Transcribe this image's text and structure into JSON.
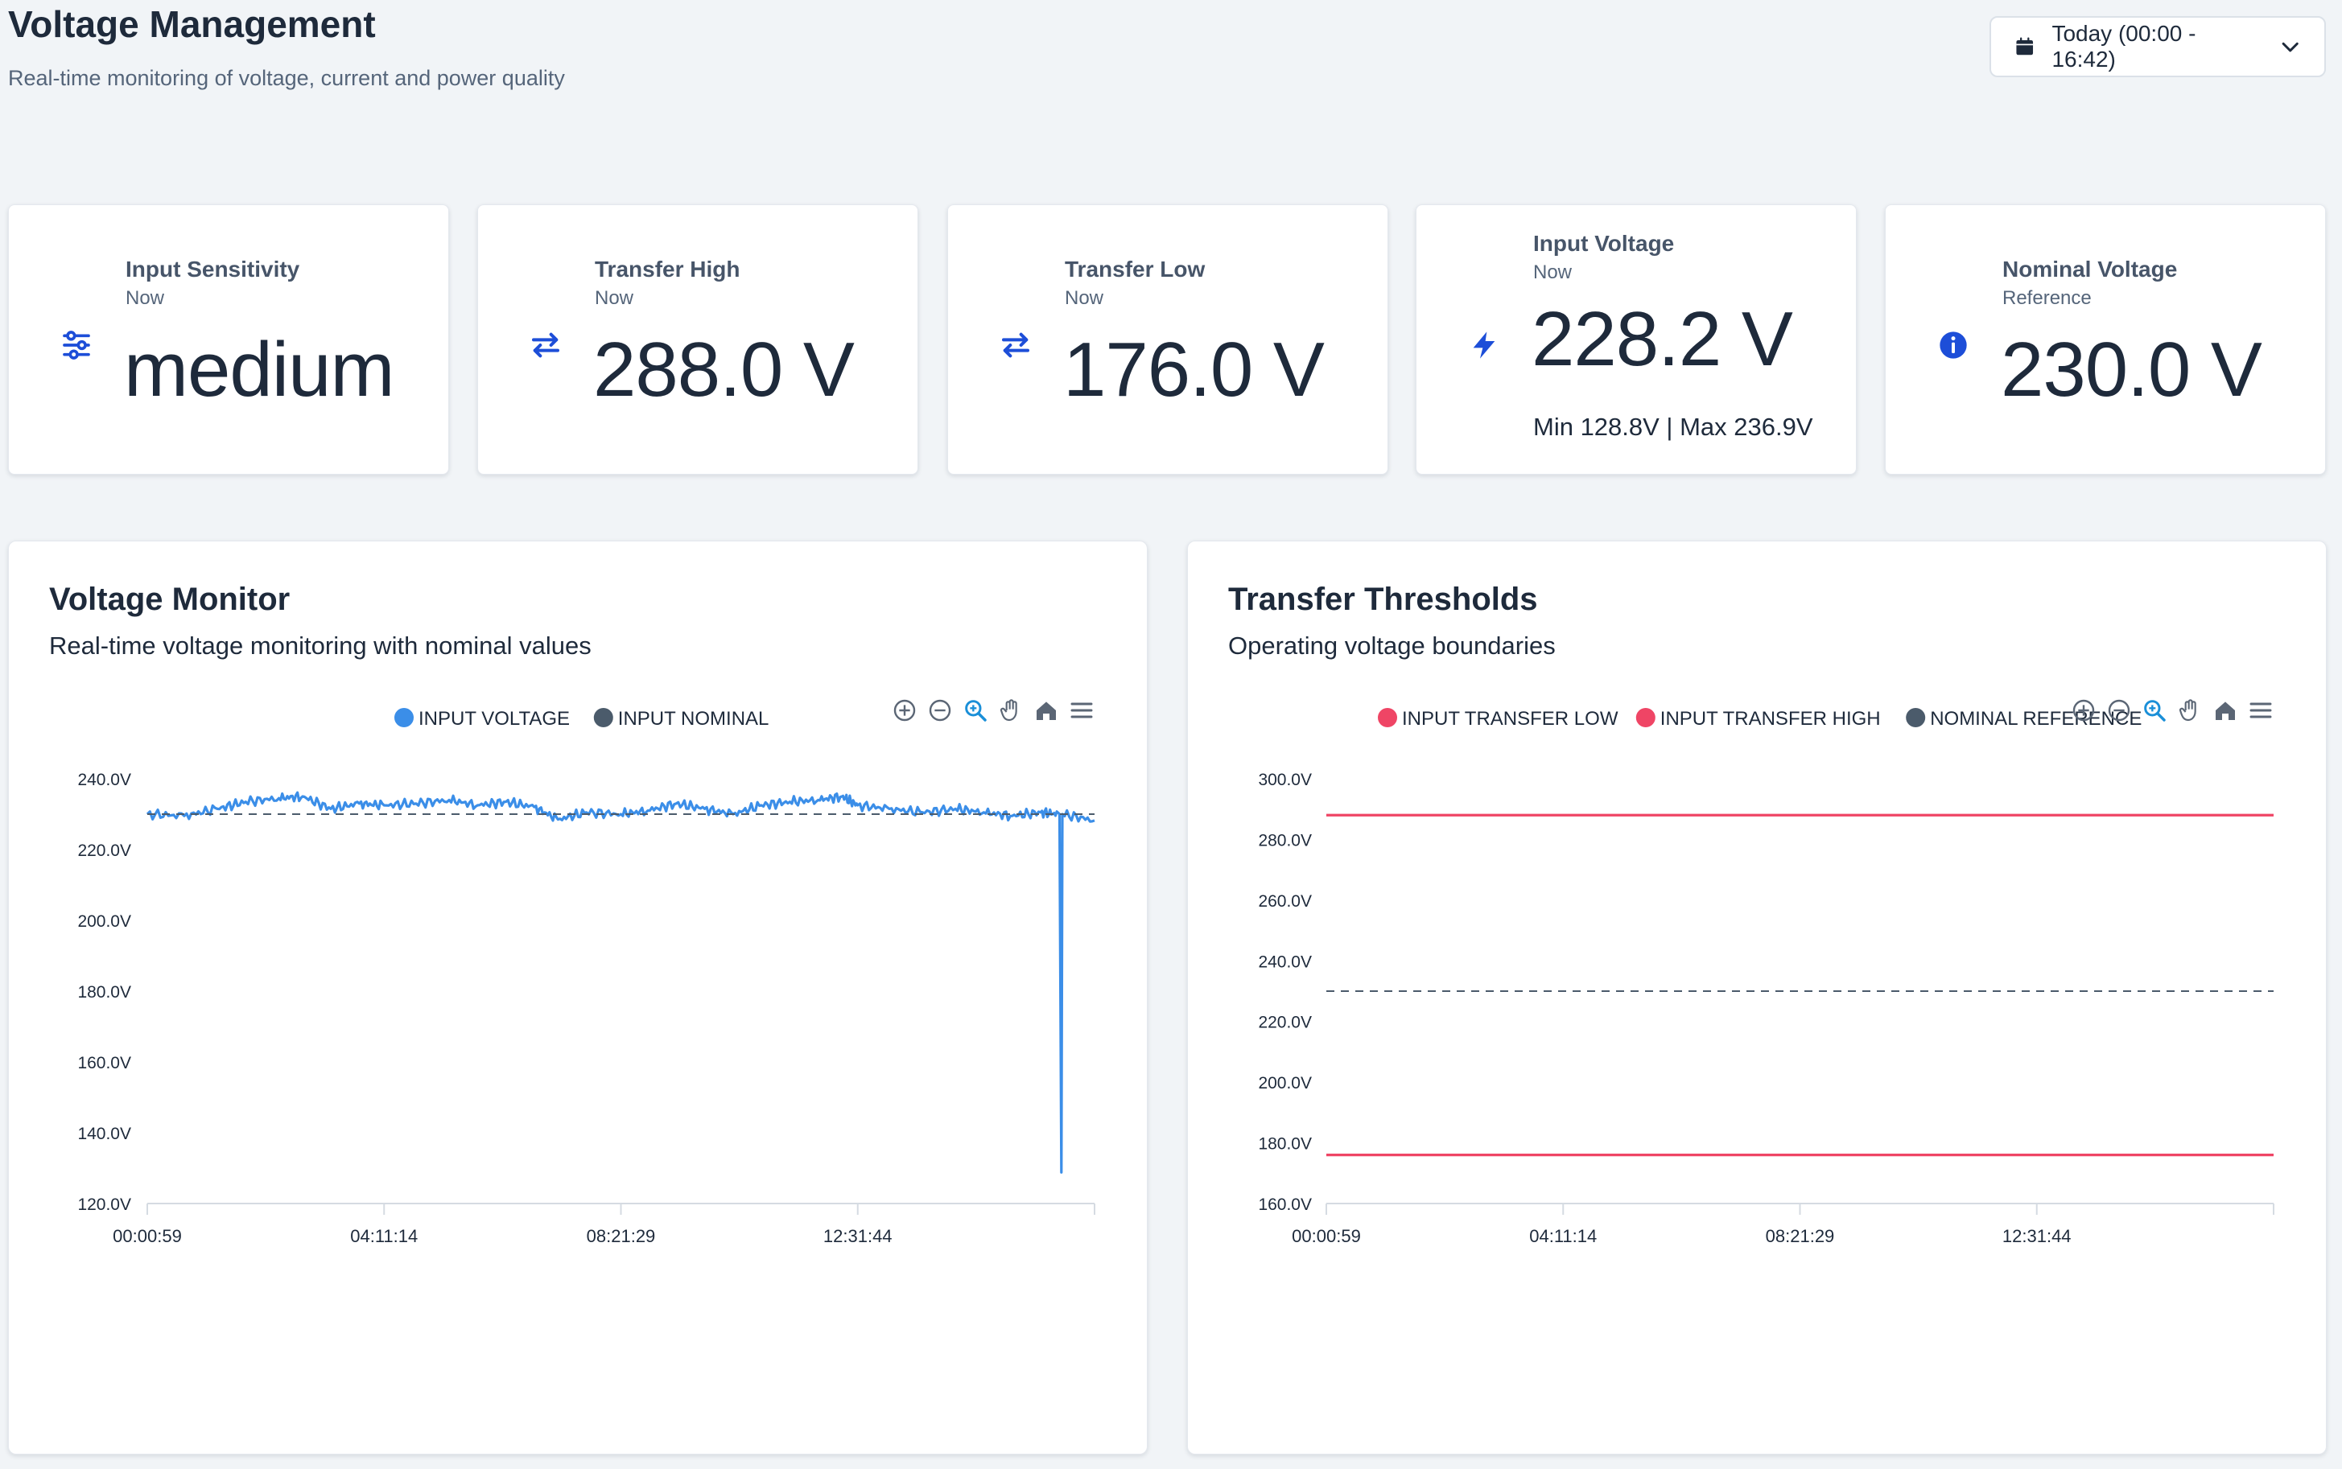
{
  "header": {
    "title": "Voltage Management",
    "subtitle": "Real-time monitoring of voltage, current and power quality"
  },
  "range_picker": {
    "label": "Today (00:00 - 16:42)",
    "icon": "calendar-icon"
  },
  "cards": [
    {
      "label": "Input Sensitivity",
      "sub": "Now",
      "value": "medium",
      "icon": "sliders-icon"
    },
    {
      "label": "Transfer High",
      "sub": "Now",
      "value": "288.0 V",
      "icon": "transfer-icon"
    },
    {
      "label": "Transfer Low",
      "sub": "Now",
      "value": "176.0 V",
      "icon": "transfer-icon"
    },
    {
      "label": "Input Voltage",
      "sub": "Now",
      "value": "228.2 V",
      "minmax": "Min 128.8V | Max 236.9V",
      "icon": "bolt-icon"
    },
    {
      "label": "Nominal Voltage",
      "sub": "Reference",
      "value": "230.0 V",
      "icon": "info-icon"
    }
  ],
  "panels": {
    "voltage_monitor": {
      "title": "Voltage Monitor",
      "subtitle": "Real-time voltage monitoring with nominal values"
    },
    "transfer_thresholds": {
      "title": "Transfer Thresholds",
      "subtitle": "Operating voltage boundaries"
    }
  },
  "colors": {
    "accent": "#1d4ed8",
    "input_voltage": "#3b8ee8",
    "input_nominal": "#4b5b6b",
    "transfer_line": "#ef4565",
    "nominal_ref": "#4b5b6b"
  },
  "chart_data": [
    {
      "type": "line",
      "x_ticks": [
        "00:00:59",
        "04:11:14",
        "08:21:29",
        "12:31:44"
      ],
      "x_range": [
        "00:00:59",
        "16:42:00"
      ],
      "ylim": [
        120,
        240
      ],
      "y_ticks": [
        "240.0V",
        "220.0V",
        "200.0V",
        "180.0V",
        "160.0V",
        "140.0V",
        "120.0V"
      ],
      "legend_position": "top-center",
      "series": [
        {
          "name": "INPUT VOLTAGE",
          "style": "solid",
          "points": [
            [
              "00:00:59",
              230.0
            ],
            [
              "00:40:00",
              229.5
            ],
            [
              "01:15:00",
              231.5
            ],
            [
              "01:45:00",
              233.5
            ],
            [
              "02:20:00",
              234.5
            ],
            [
              "02:45:00",
              235.0
            ],
            [
              "03:15:00",
              231.5
            ],
            [
              "03:45:00",
              233.0
            ],
            [
              "04:11:14",
              232.5
            ],
            [
              "04:45:00",
              233.0
            ],
            [
              "05:20:00",
              234.0
            ],
            [
              "05:50:00",
              232.5
            ],
            [
              "06:20:00",
              233.5
            ],
            [
              "06:50:00",
              232.0
            ],
            [
              "07:15:00",
              228.5
            ],
            [
              "07:45:00",
              230.5
            ],
            [
              "08:21:29",
              230.0
            ],
            [
              "08:50:00",
              231.0
            ],
            [
              "09:20:00",
              233.0
            ],
            [
              "09:50:00",
              231.5
            ],
            [
              "10:20:00",
              230.0
            ],
            [
              "10:50:00",
              232.5
            ],
            [
              "11:20:00",
              233.5
            ],
            [
              "11:50:00",
              234.0
            ],
            [
              "12:15:00",
              235.0
            ],
            [
              "12:31:44",
              232.5
            ],
            [
              "13:05:00",
              231.5
            ],
            [
              "13:40:00",
              230.5
            ],
            [
              "14:15:00",
              231.5
            ],
            [
              "14:45:00",
              230.5
            ],
            [
              "15:15:00",
              229.5
            ],
            [
              "15:45:00",
              230.5
            ],
            [
              "16:05:00",
              230.0
            ],
            [
              "16:07:00",
              128.8
            ],
            [
              "16:08:00",
              230.0
            ],
            [
              "16:42:00",
              228.2
            ]
          ]
        },
        {
          "name": "INPUT NOMINAL",
          "style": "dashed",
          "value": 230.0
        }
      ]
    },
    {
      "type": "line",
      "x_ticks": [
        "00:00:59",
        "04:11:14",
        "08:21:29",
        "12:31:44"
      ],
      "x_range": [
        "00:00:59",
        "16:42:00"
      ],
      "ylim": [
        160,
        300
      ],
      "y_ticks": [
        "300.0V",
        "280.0V",
        "260.0V",
        "240.0V",
        "220.0V",
        "200.0V",
        "180.0V",
        "160.0V"
      ],
      "legend_position": "top-center",
      "series": [
        {
          "name": "INPUT TRANSFER LOW",
          "style": "solid",
          "value": 176.0
        },
        {
          "name": "INPUT TRANSFER HIGH",
          "style": "solid",
          "value": 288.0
        },
        {
          "name": "NOMINAL REFERENCE",
          "style": "dashed",
          "value": 230.0
        }
      ]
    }
  ]
}
